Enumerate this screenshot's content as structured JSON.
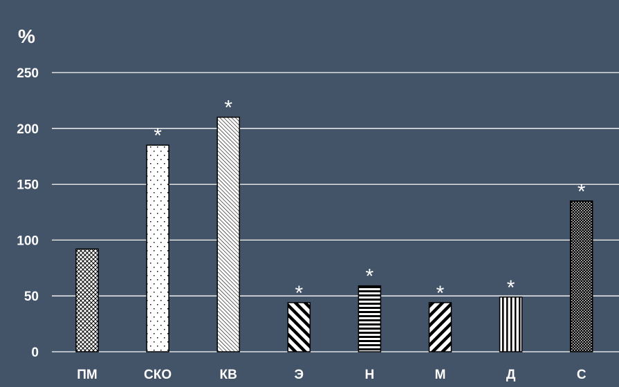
{
  "chart_data": {
    "type": "bar",
    "ylabel": "%",
    "ylim": [
      0,
      250
    ],
    "yticks": [
      "0",
      "50",
      "100",
      "150",
      "200",
      "250"
    ],
    "categories": [
      "ПМ",
      "СКО",
      "КВ",
      "Э",
      "Н",
      "М",
      "Д",
      "С"
    ],
    "values": [
      92,
      185,
      210,
      44,
      59,
      44,
      49,
      135
    ],
    "significant": [
      false,
      true,
      true,
      true,
      true,
      true,
      true,
      true
    ],
    "marker": "*",
    "patterns": [
      "crosshatch",
      "sparse-dots",
      "fine-diagonal",
      "thick-diagonal-back",
      "horizontal-lines",
      "thick-diagonal-forward",
      "vertical-lines",
      "dense-dots"
    ],
    "grid": true,
    "legend": "none",
    "colors": {
      "background": "#435368",
      "gridline": "#ffffff",
      "text": "#ffffff",
      "bar_fill": "#ffffff",
      "bar_stroke": "#000000",
      "pattern_ink": "#000000"
    }
  }
}
